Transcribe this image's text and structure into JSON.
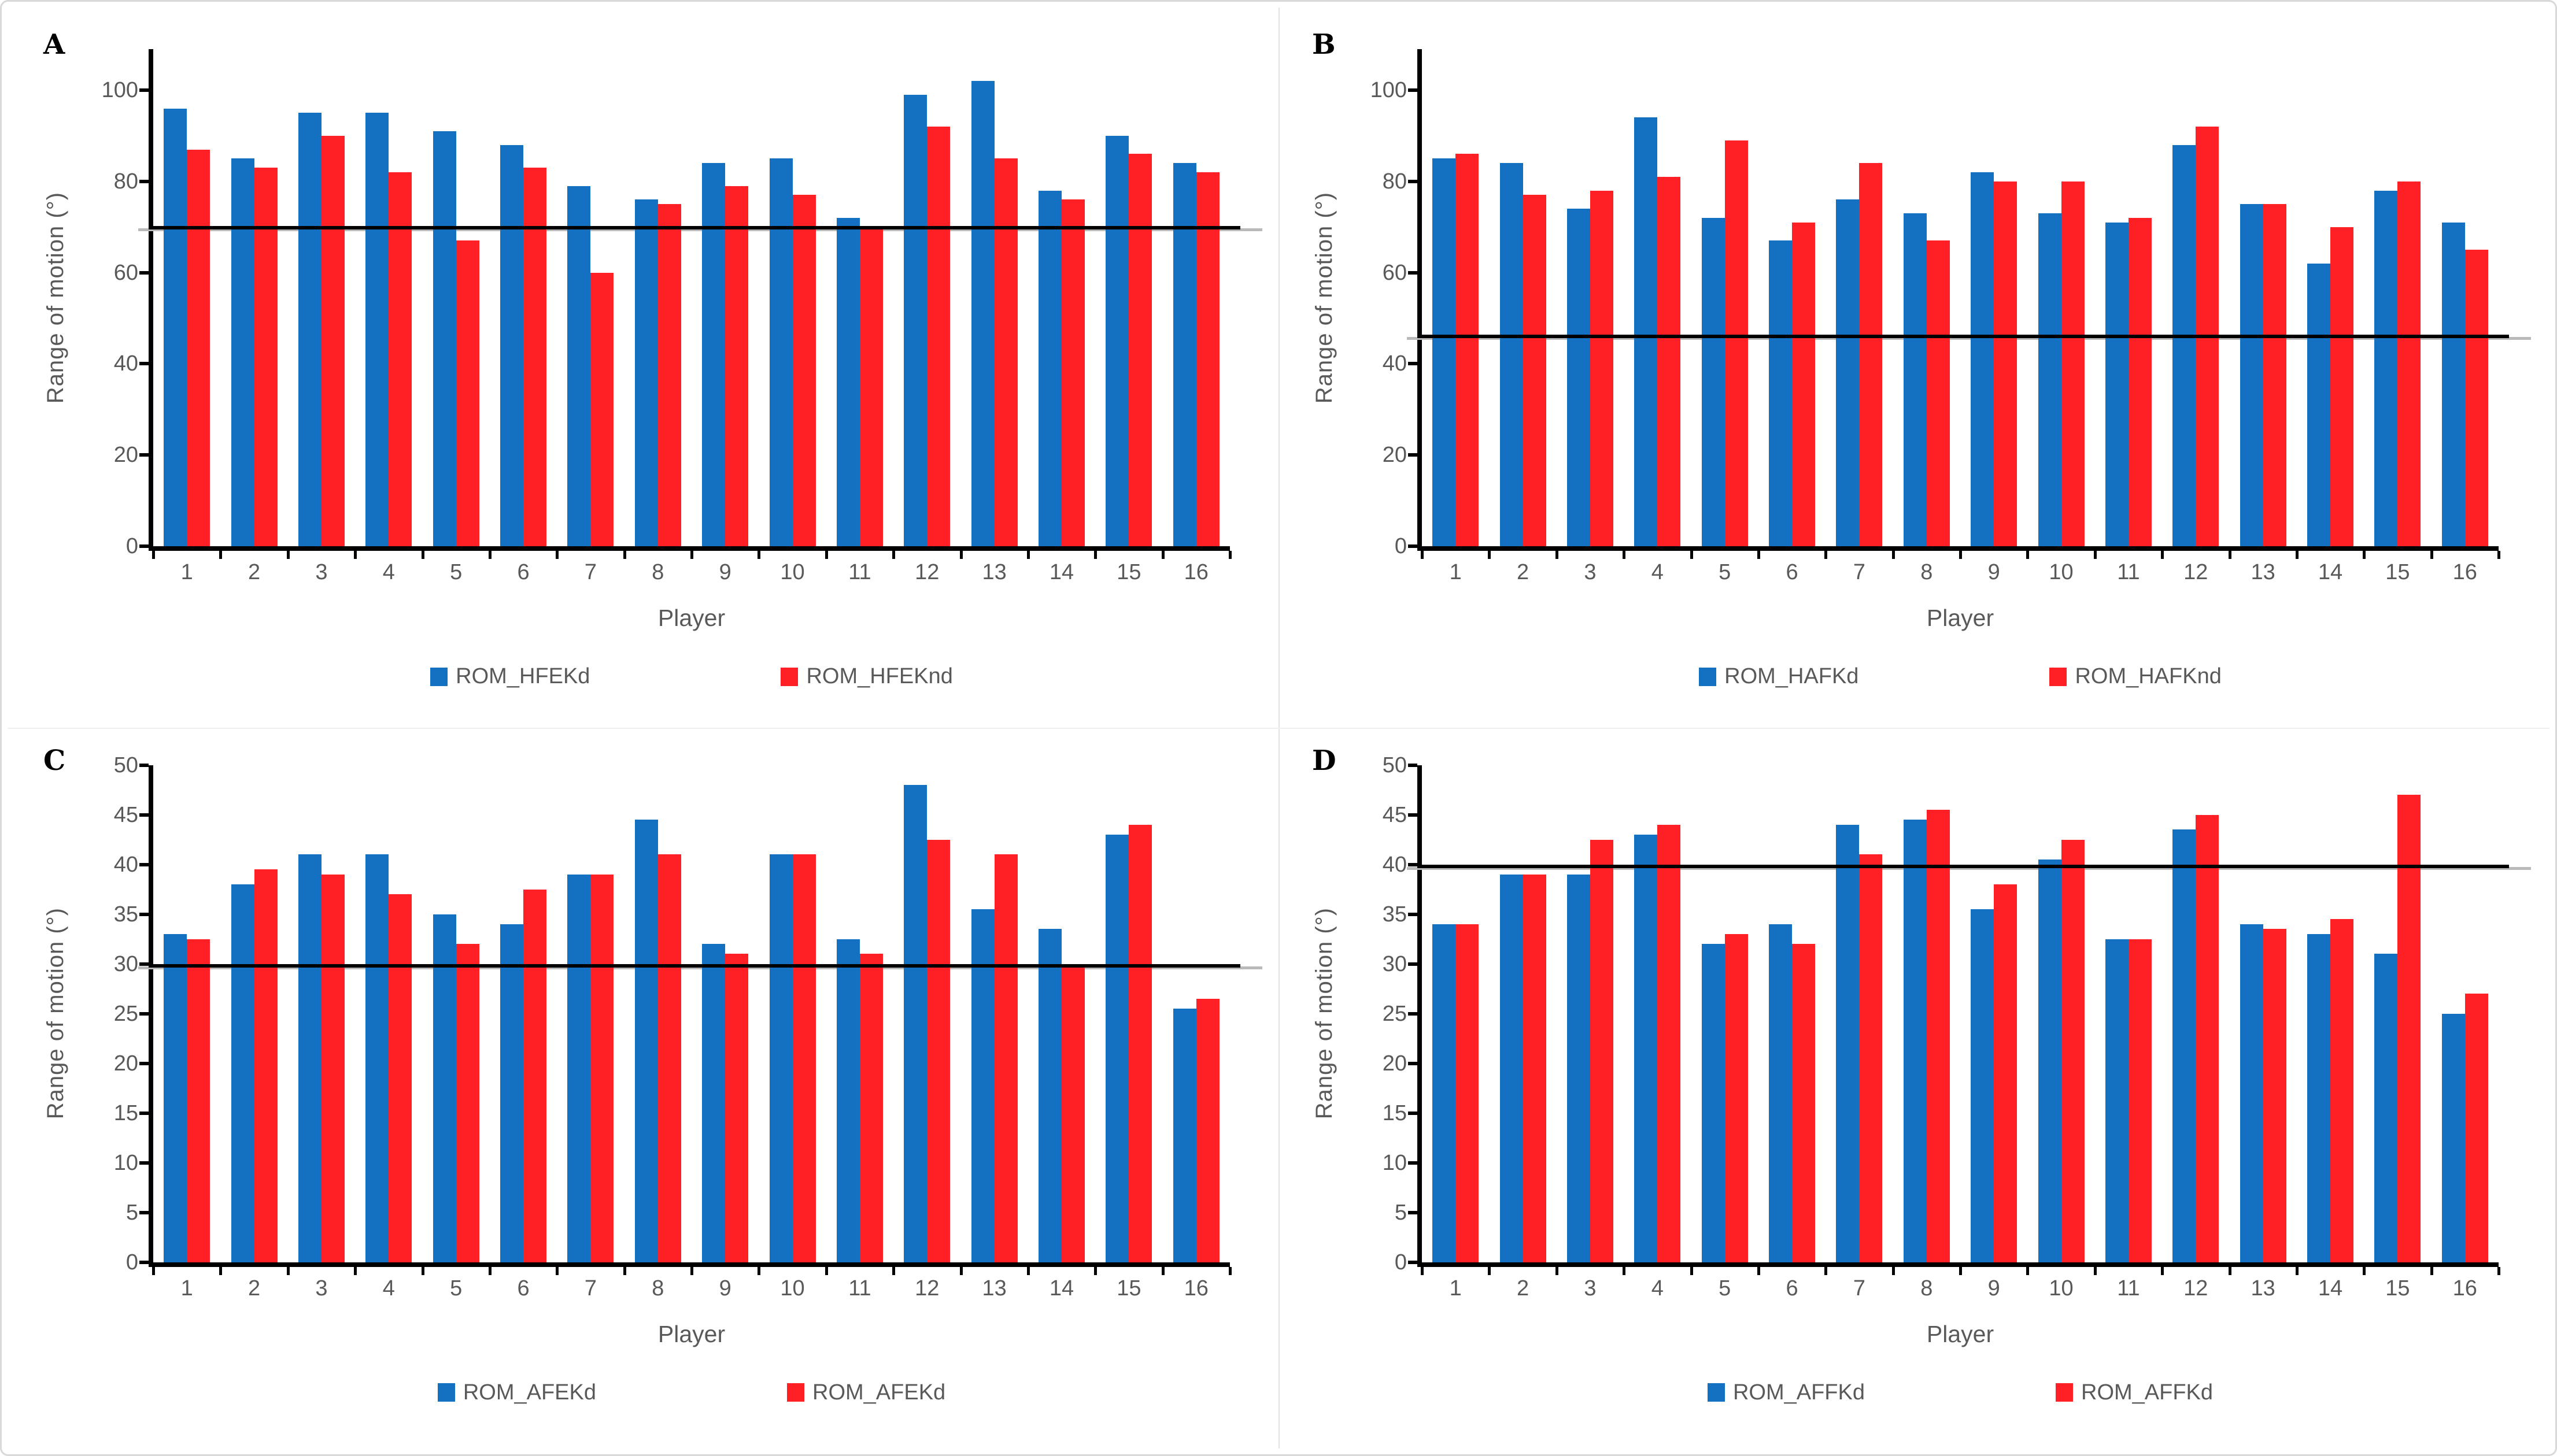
{
  "figure": {
    "style": {
      "border_color": "#d9d9d9",
      "axis_color": "#000000",
      "text_color": "#595959",
      "blue": "#1470c0",
      "red": "#ff2025",
      "reference_line_color": "#000000"
    }
  },
  "chart_data": [
    {
      "type": "bar",
      "panel_label": "A",
      "categories": [
        "1",
        "2",
        "3",
        "4",
        "5",
        "6",
        "7",
        "8",
        "9",
        "10",
        "11",
        "12",
        "13",
        "14",
        "15",
        "16"
      ],
      "series": [
        {
          "name": "ROM_HFEKd",
          "color": "#1470c0",
          "values": [
            96,
            85,
            95,
            95,
            91,
            88,
            79,
            76,
            84,
            85,
            72,
            99,
            102,
            78,
            90,
            84
          ]
        },
        {
          "name": "ROM_HFEKnd",
          "color": "#ff2025",
          "values": [
            87,
            83,
            90,
            82,
            67,
            83,
            60,
            75,
            79,
            77,
            70,
            92,
            85,
            76,
            86,
            82
          ]
        }
      ],
      "xlabel": "Player",
      "ylabel": "Range of motion (°)",
      "ylim": [
        0,
        100
      ],
      "plot_max": 109,
      "yticks": [
        0,
        20,
        40,
        60,
        80,
        100
      ],
      "reference_line": 69.8,
      "legend_position": "bottom",
      "grid": false
    },
    {
      "type": "bar",
      "panel_label": "B",
      "categories": [
        "1",
        "2",
        "3",
        "4",
        "5",
        "6",
        "7",
        "8",
        "9",
        "10",
        "11",
        "12",
        "13",
        "14",
        "15",
        "16"
      ],
      "series": [
        {
          "name": "ROM_HAFKd",
          "color": "#1470c0",
          "values": [
            85,
            84,
            74,
            94,
            72,
            67,
            76,
            73,
            82,
            73,
            71,
            88,
            75,
            62,
            78,
            71
          ]
        },
        {
          "name": "ROM_HAFKnd",
          "color": "#ff2025",
          "values": [
            86,
            77,
            78,
            81,
            89,
            71,
            84,
            67,
            80,
            80,
            72,
            92,
            75,
            70,
            80,
            65
          ]
        }
      ],
      "xlabel": "Player",
      "ylabel": "Range of motion (°)",
      "ylim": [
        0,
        100
      ],
      "plot_max": 109,
      "yticks": [
        0,
        20,
        40,
        60,
        80,
        100
      ],
      "reference_line": 46,
      "legend_position": "bottom",
      "grid": false
    },
    {
      "type": "bar",
      "panel_label": "C",
      "categories": [
        "1",
        "2",
        "3",
        "4",
        "5",
        "6",
        "7",
        "8",
        "9",
        "10",
        "11",
        "12",
        "13",
        "14",
        "15",
        "16"
      ],
      "series": [
        {
          "name": "ROM_AFEKd",
          "color": "#1470c0",
          "values": [
            33,
            38,
            41,
            41,
            35,
            34,
            39,
            44.5,
            32,
            41,
            32.5,
            48,
            35.5,
            33.5,
            43,
            25.5
          ]
        },
        {
          "name": "ROM_AFEKd",
          "color": "#ff2025",
          "values": [
            32.5,
            39.5,
            39,
            37,
            32,
            37.5,
            39,
            41,
            31,
            41,
            31,
            42.5,
            41,
            30,
            44,
            26.5
          ]
        }
      ],
      "xlabel": "Player",
      "ylabel": "Range of motion (°)",
      "ylim": [
        0,
        50
      ],
      "plot_max": 50,
      "yticks": [
        0,
        5,
        10,
        15,
        20,
        25,
        30,
        35,
        40,
        45,
        50
      ],
      "reference_line": 29.8,
      "legend_position": "bottom",
      "grid": false
    },
    {
      "type": "bar",
      "panel_label": "D",
      "categories": [
        "1",
        "2",
        "3",
        "4",
        "5",
        "6",
        "7",
        "8",
        "9",
        "10",
        "11",
        "12",
        "13",
        "14",
        "15",
        "16"
      ],
      "series": [
        {
          "name": "ROM_AFFKd",
          "color": "#1470c0",
          "values": [
            34,
            39,
            39,
            43,
            32,
            34,
            44,
            44.5,
            35.5,
            40.5,
            32.5,
            43.5,
            34,
            33,
            31,
            25
          ]
        },
        {
          "name": "ROM_AFFKd",
          "color": "#ff2025",
          "values": [
            34,
            39,
            42.5,
            44,
            33,
            32,
            41,
            45.5,
            38,
            42.5,
            32.5,
            45,
            33.5,
            34.5,
            47,
            27
          ]
        }
      ],
      "xlabel": "Player",
      "ylabel": "Range of motion (°)",
      "ylim": [
        0,
        50
      ],
      "plot_max": 50,
      "yticks": [
        0,
        5,
        10,
        15,
        20,
        25,
        30,
        35,
        40,
        45,
        50
      ],
      "reference_line": 39.8,
      "legend_position": "bottom",
      "grid": false
    }
  ]
}
